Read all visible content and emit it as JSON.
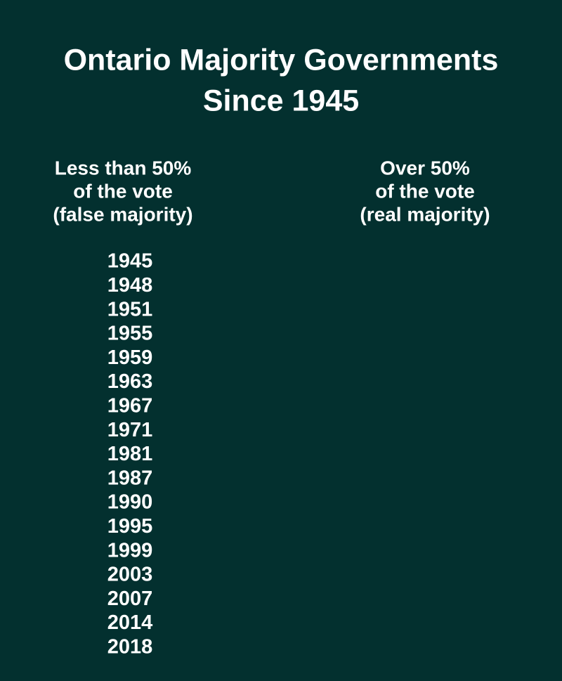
{
  "title": {
    "lines": [
      "Ontario Majority Governments",
      "Since 1945"
    ]
  },
  "columns": [
    {
      "header": [
        "Less than 50%",
        "of the vote",
        "(false majority)"
      ],
      "years": [
        1945,
        1948,
        1951,
        1955,
        1959,
        1963,
        1967,
        1971,
        1981,
        1987,
        1990,
        1995,
        1999,
        2003,
        2007,
        2014,
        2018
      ]
    },
    {
      "header": [
        "Over 50%",
        "of the vote",
        "(real majority)"
      ]
    }
  ]
}
